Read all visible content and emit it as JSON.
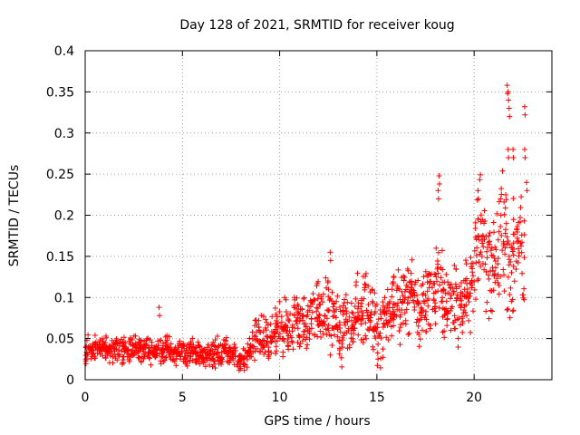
{
  "chart_data": {
    "type": "scatter",
    "title": "Day 128 of 2021, SRMTID for receiver koug",
    "xlabel": "GPS time / hours",
    "ylabel": "SRMTID / TECUs",
    "xlim": [
      0,
      24
    ],
    "ylim": [
      0,
      0.4
    ],
    "xticks": [
      0,
      5,
      10,
      15,
      20
    ],
    "xtick_labels": [
      "0",
      "5",
      "10",
      "15",
      "20"
    ],
    "yticks": [
      0,
      0.05,
      0.1,
      0.15,
      0.2,
      0.25,
      0.3,
      0.35,
      0.4
    ],
    "ytick_labels": [
      "0",
      "0.05",
      "0.1",
      "0.15",
      "0.2",
      "0.25",
      "0.3",
      "0.35",
      "0.4"
    ],
    "grid": true,
    "marker": "+",
    "color": "#ff0000",
    "series": [
      {
        "name": "SRMTID",
        "x": [
          0.0,
          0.2,
          0.4,
          0.6,
          0.8,
          1.0,
          1.2,
          1.4,
          1.6,
          1.8,
          2.0,
          2.2,
          2.4,
          2.6,
          2.8,
          3.0,
          3.2,
          3.4,
          3.6,
          3.8,
          4.0,
          4.2,
          4.4,
          4.6,
          4.8,
          5.0,
          5.2,
          5.4,
          5.6,
          5.8,
          6.0,
          6.2,
          6.4,
          6.6,
          6.8,
          7.0,
          7.2,
          7.4,
          7.6,
          7.8,
          8.0,
          8.2,
          8.4,
          8.6,
          8.8,
          9.0,
          9.2,
          9.4,
          9.6,
          9.8,
          10.0,
          10.2,
          10.4,
          10.6,
          10.8,
          11.0,
          11.2,
          11.4,
          11.6,
          11.8,
          12.0,
          12.2,
          12.4,
          12.6,
          12.8,
          13.0,
          13.2,
          13.4,
          13.6,
          13.8,
          14.0,
          14.2,
          14.4,
          14.6,
          14.8,
          15.0,
          15.2,
          15.4,
          15.6,
          15.8,
          16.0,
          16.2,
          16.4,
          16.6,
          16.8,
          17.0,
          17.2,
          17.4,
          17.6,
          17.8,
          18.0,
          18.2,
          18.4,
          18.6,
          18.8,
          19.0,
          19.2,
          19.4,
          19.6,
          19.8,
          20.0,
          20.2,
          20.4,
          20.6,
          20.8,
          21.0,
          21.2,
          21.4,
          21.6,
          21.8,
          22.0,
          22.2,
          22.4,
          22.6
        ],
        "mean": [
          0.03,
          0.04,
          0.035,
          0.04,
          0.035,
          0.04,
          0.035,
          0.035,
          0.04,
          0.035,
          0.035,
          0.04,
          0.035,
          0.04,
          0.035,
          0.035,
          0.04,
          0.035,
          0.04,
          0.035,
          0.035,
          0.04,
          0.035,
          0.035,
          0.03,
          0.035,
          0.03,
          0.035,
          0.03,
          0.035,
          0.03,
          0.03,
          0.03,
          0.03,
          0.035,
          0.03,
          0.035,
          0.03,
          0.03,
          0.025,
          0.025,
          0.025,
          0.03,
          0.04,
          0.055,
          0.06,
          0.05,
          0.04,
          0.05,
          0.06,
          0.065,
          0.06,
          0.07,
          0.06,
          0.075,
          0.07,
          0.08,
          0.06,
          0.07,
          0.08,
          0.085,
          0.07,
          0.09,
          0.065,
          0.08,
          0.07,
          0.06,
          0.08,
          0.06,
          0.065,
          0.09,
          0.085,
          0.095,
          0.075,
          0.08,
          0.06,
          0.05,
          0.08,
          0.085,
          0.09,
          0.1,
          0.08,
          0.1,
          0.1,
          0.11,
          0.09,
          0.07,
          0.09,
          0.1,
          0.11,
          0.1,
          0.15,
          0.09,
          0.085,
          0.09,
          0.1,
          0.085,
          0.09,
          0.11,
          0.1,
          0.13,
          0.17,
          0.18,
          0.14,
          0.13,
          0.12,
          0.15,
          0.19,
          0.17,
          0.13,
          0.15,
          0.18,
          0.16,
          0.14
        ],
        "spread": [
          0.012,
          0.012,
          0.012,
          0.012,
          0.012,
          0.012,
          0.012,
          0.012,
          0.012,
          0.012,
          0.012,
          0.012,
          0.012,
          0.012,
          0.012,
          0.012,
          0.012,
          0.012,
          0.012,
          0.012,
          0.012,
          0.012,
          0.012,
          0.012,
          0.012,
          0.012,
          0.012,
          0.012,
          0.012,
          0.012,
          0.012,
          0.012,
          0.012,
          0.012,
          0.012,
          0.012,
          0.012,
          0.012,
          0.012,
          0.012,
          0.012,
          0.012,
          0.012,
          0.015,
          0.02,
          0.02,
          0.02,
          0.02,
          0.02,
          0.02,
          0.025,
          0.025,
          0.025,
          0.025,
          0.025,
          0.025,
          0.025,
          0.025,
          0.025,
          0.025,
          0.03,
          0.03,
          0.03,
          0.03,
          0.03,
          0.03,
          0.03,
          0.03,
          0.03,
          0.03,
          0.03,
          0.03,
          0.03,
          0.03,
          0.03,
          0.03,
          0.03,
          0.03,
          0.03,
          0.03,
          0.03,
          0.03,
          0.03,
          0.03,
          0.03,
          0.03,
          0.03,
          0.03,
          0.03,
          0.03,
          0.03,
          0.04,
          0.035,
          0.03,
          0.03,
          0.03,
          0.03,
          0.03,
          0.03,
          0.03,
          0.04,
          0.05,
          0.05,
          0.05,
          0.05,
          0.05,
          0.05,
          0.05,
          0.05,
          0.05,
          0.05,
          0.05,
          0.05,
          0.05
        ],
        "peaks": [
          [
            3.8,
            0.088
          ],
          [
            18.2,
            0.248
          ],
          [
            18.15,
            0.23
          ],
          [
            21.7,
            0.358
          ],
          [
            21.75,
            0.35
          ],
          [
            21.8,
            0.33
          ],
          [
            21.75,
            0.28
          ],
          [
            22.0,
            0.28
          ],
          [
            22.6,
            0.332
          ],
          [
            22.6,
            0.28
          ],
          [
            22.7,
            0.24
          ],
          [
            12.6,
            0.155
          ],
          [
            20.2,
            0.23
          ]
        ]
      }
    ]
  }
}
